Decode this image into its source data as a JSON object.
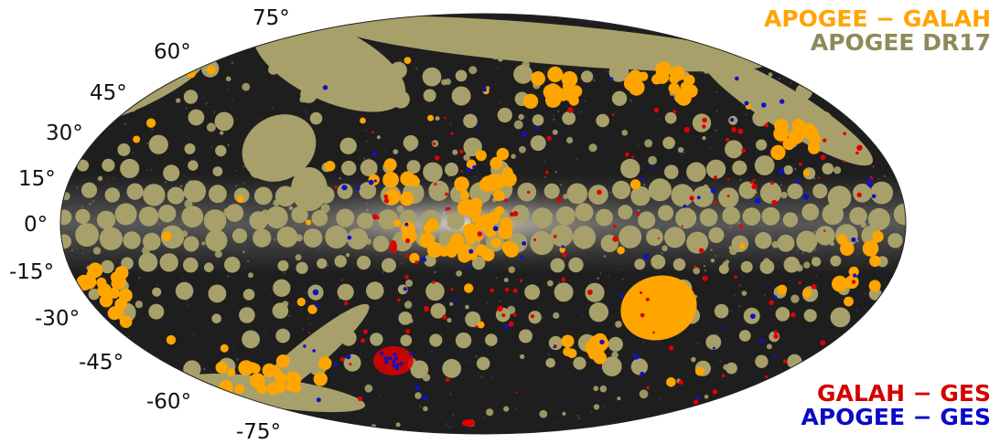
{
  "map": {
    "projection": "mollweide",
    "latitude_labels": [
      "75°",
      "60°",
      "45°",
      "30°",
      "15°",
      "0°",
      "-15°",
      "-30°",
      "-45°",
      "-60°",
      "-75°"
    ],
    "background": "galactic-sky",
    "colors": {
      "sky_dark": "#1e1e1e",
      "milky_way": "#cfcbc0",
      "apogee_dr17": "#a7a06a",
      "apogee_galah": "#ffa500",
      "galah_ges": "#e00000",
      "apogee_ges": "#1010c8"
    }
  },
  "legend": {
    "top": [
      {
        "text": "APOGEE − GALAH",
        "color": "#ffa500"
      },
      {
        "text": "APOGEE DR17",
        "color": "#8f8a5a"
      }
    ],
    "bottom": [
      {
        "text": "GALAH − GES",
        "color": "#d40000"
      },
      {
        "text": "APOGEE − GES",
        "color": "#0a0ac8"
      }
    ]
  }
}
